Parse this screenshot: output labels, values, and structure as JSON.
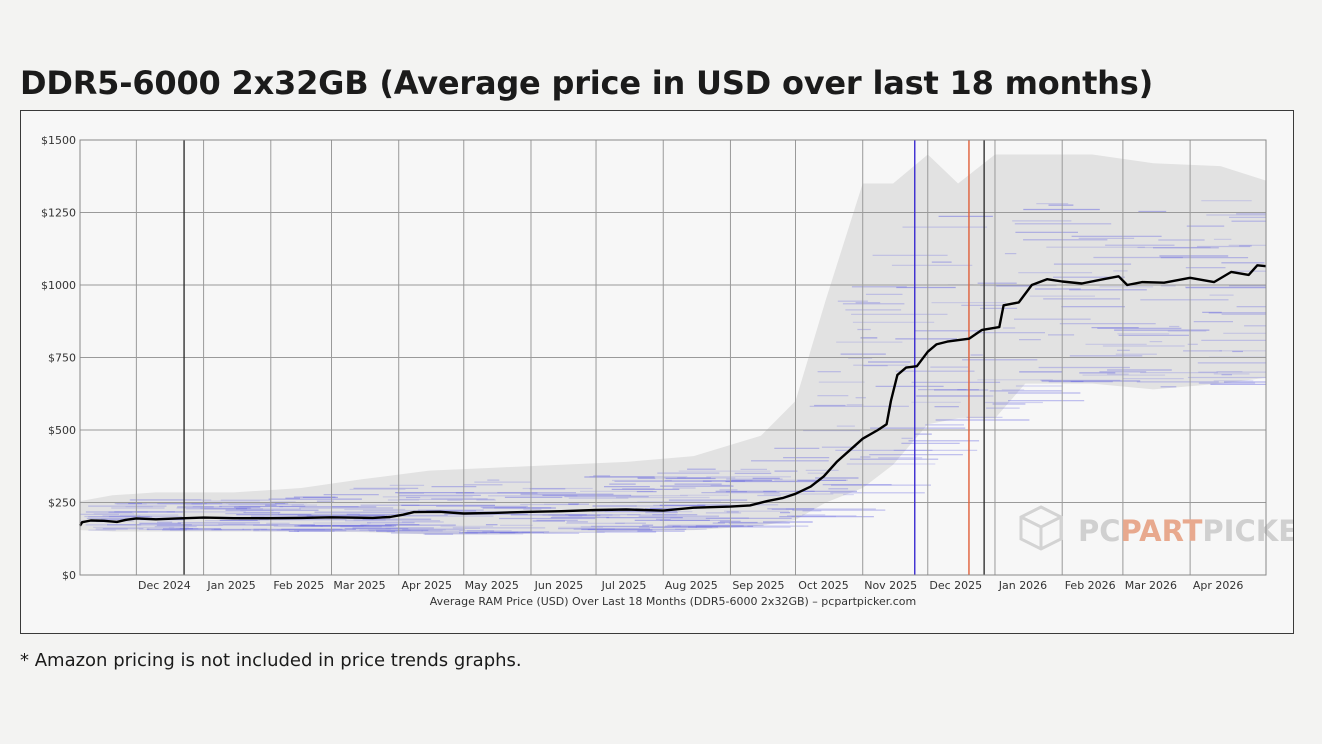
{
  "page": {
    "title": "DDR5-6000 2x32GB (Average price in USD over last 18 months)",
    "footnote": "* Amazon pricing is not included in price trends graphs."
  },
  "watermark": {
    "part1": "PC",
    "part2": "PART",
    "part3": "PICKER",
    "color_part": "#e8a98e",
    "color_text": "#d0d0d0"
  },
  "colors": {
    "average_line": "#000000",
    "price_band": "#e2e2e2",
    "retailer_lines": "#6b6be0",
    "grid": "#9a9a9a",
    "marker_dark": "#333333",
    "marker_blue": "#3a2ad0",
    "marker_red": "#e0603a"
  },
  "chart_data": {
    "type": "line",
    "title": "",
    "xlabel": "Average RAM Price (USD) Over Last 18 Months (DDR5-6000 2x32GB) – pcpartpicker.com",
    "ylabel": "",
    "x_range": [
      "2024-11-05",
      "2026-05-06"
    ],
    "ylim": [
      0,
      1500
    ],
    "y_ticks": [
      0,
      250,
      500,
      750,
      1000,
      1250,
      1500
    ],
    "y_tick_labels": [
      "$0",
      "$250",
      "$500",
      "$750",
      "$1000",
      "$1250",
      "$1500"
    ],
    "x_ticks": [
      {
        "date": "2024-12-01",
        "label": "Dec 2024"
      },
      {
        "date": "2025-01-01",
        "label": "Jan 2025"
      },
      {
        "date": "2025-02-01",
        "label": "Feb 2025"
      },
      {
        "date": "2025-03-01",
        "label": "Mar 2025"
      },
      {
        "date": "2025-04-01",
        "label": "Apr 2025"
      },
      {
        "date": "2025-05-01",
        "label": "May 2025"
      },
      {
        "date": "2025-06-01",
        "label": "Jun 2025"
      },
      {
        "date": "2025-07-01",
        "label": "Jul 2025"
      },
      {
        "date": "2025-08-01",
        "label": "Aug 2025"
      },
      {
        "date": "2025-09-01",
        "label": "Sep 2025"
      },
      {
        "date": "2025-10-01",
        "label": "Oct 2025"
      },
      {
        "date": "2025-11-01",
        "label": "Nov 2025"
      },
      {
        "date": "2025-12-01",
        "label": "Dec 2025"
      },
      {
        "date": "2026-01-01",
        "label": "Jan 2026"
      },
      {
        "date": "2026-02-01",
        "label": "Feb 2026"
      },
      {
        "date": "2026-03-01",
        "label": "Mar 2026"
      },
      {
        "date": "2026-04-01",
        "label": "Apr 2026"
      }
    ],
    "grid": true,
    "markers": [
      {
        "date": "2024-12-23",
        "color": "#333333"
      },
      {
        "date": "2025-11-25",
        "color": "#3a2ad0"
      },
      {
        "date": "2025-12-20",
        "color": "#e0603a"
      },
      {
        "date": "2025-12-27",
        "color": "#333333"
      }
    ],
    "series": [
      {
        "values": [
          [
            "2024-11-05",
            170
          ],
          [
            "2024-11-06",
            182
          ],
          [
            "2024-11-10",
            188
          ],
          [
            "2024-11-16",
            187
          ],
          [
            "2024-11-22",
            183
          ],
          [
            "2024-11-26",
            190
          ],
          [
            "2024-12-01",
            195
          ],
          [
            "2024-12-10",
            192
          ],
          [
            "2024-12-20",
            195
          ],
          [
            "2025-01-01",
            198
          ],
          [
            "2025-01-15",
            196
          ],
          [
            "2025-02-01",
            196
          ],
          [
            "2025-02-15",
            197
          ],
          [
            "2025-03-01",
            199
          ],
          [
            "2025-03-20",
            197
          ],
          [
            "2025-03-28",
            200
          ],
          [
            "2025-04-03",
            208
          ],
          [
            "2025-04-08",
            217
          ],
          [
            "2025-04-20",
            218
          ],
          [
            "2025-05-01",
            212
          ],
          [
            "2025-05-15",
            214
          ],
          [
            "2025-06-01",
            218
          ],
          [
            "2025-06-15",
            220
          ],
          [
            "2025-07-01",
            224
          ],
          [
            "2025-07-15",
            226
          ],
          [
            "2025-08-01",
            222
          ],
          [
            "2025-08-15",
            232
          ],
          [
            "2025-09-01",
            236
          ],
          [
            "2025-09-10",
            240
          ],
          [
            "2025-09-18",
            255
          ],
          [
            "2025-09-25",
            265
          ],
          [
            "2025-10-01",
            280
          ],
          [
            "2025-10-08",
            305
          ],
          [
            "2025-10-14",
            340
          ],
          [
            "2025-10-20",
            390
          ],
          [
            "2025-10-26",
            430
          ],
          [
            "2025-11-01",
            470
          ],
          [
            "2025-11-08",
            500
          ],
          [
            "2025-11-12",
            520
          ],
          [
            "2025-11-14",
            600
          ],
          [
            "2025-11-17",
            690
          ],
          [
            "2025-11-21",
            715
          ],
          [
            "2025-11-26",
            720
          ],
          [
            "2025-12-01",
            770
          ],
          [
            "2025-12-05",
            795
          ],
          [
            "2025-12-10",
            805
          ],
          [
            "2025-12-20",
            815
          ],
          [
            "2025-12-26",
            845
          ],
          [
            "2026-01-03",
            855
          ],
          [
            "2026-01-05",
            930
          ],
          [
            "2026-01-12",
            940
          ],
          [
            "2026-01-18",
            1000
          ],
          [
            "2026-01-25",
            1020
          ],
          [
            "2026-02-01",
            1012
          ],
          [
            "2026-02-10",
            1005
          ],
          [
            "2026-02-20",
            1020
          ],
          [
            "2026-02-27",
            1030
          ],
          [
            "2026-03-03",
            1000
          ],
          [
            "2026-03-10",
            1010
          ],
          [
            "2026-03-20",
            1008
          ],
          [
            "2026-04-01",
            1025
          ],
          [
            "2026-04-12",
            1010
          ],
          [
            "2026-04-20",
            1045
          ],
          [
            "2026-04-28",
            1035
          ],
          [
            "2026-05-02",
            1068
          ],
          [
            "2026-05-06",
            1065
          ]
        ]
      }
    ],
    "price_band": [
      [
        "2024-11-05",
        155,
        255
      ],
      [
        "2024-11-20",
        150,
        275
      ],
      [
        "2024-12-10",
        150,
        285
      ],
      [
        "2025-01-15",
        150,
        285
      ],
      [
        "2025-02-15",
        150,
        300
      ],
      [
        "2025-03-15",
        148,
        330
      ],
      [
        "2025-04-15",
        140,
        360
      ],
      [
        "2025-05-15",
        140,
        370
      ],
      [
        "2025-06-15",
        145,
        380
      ],
      [
        "2025-07-15",
        150,
        390
      ],
      [
        "2025-08-15",
        155,
        410
      ],
      [
        "2025-09-15",
        170,
        480
      ],
      [
        "2025-10-01",
        190,
        600
      ],
      [
        "2025-10-15",
        250,
        950
      ],
      [
        "2025-11-01",
        300,
        1350
      ],
      [
        "2025-11-15",
        380,
        1350
      ],
      [
        "2025-12-01",
        520,
        1450
      ],
      [
        "2025-12-15",
        540,
        1350
      ],
      [
        "2026-01-01",
        540,
        1450
      ],
      [
        "2026-01-15",
        660,
        1450
      ],
      [
        "2026-02-15",
        660,
        1450
      ],
      [
        "2026-03-15",
        640,
        1420
      ],
      [
        "2026-04-15",
        660,
        1410
      ],
      [
        "2026-05-06",
        680,
        1360
      ]
    ]
  }
}
